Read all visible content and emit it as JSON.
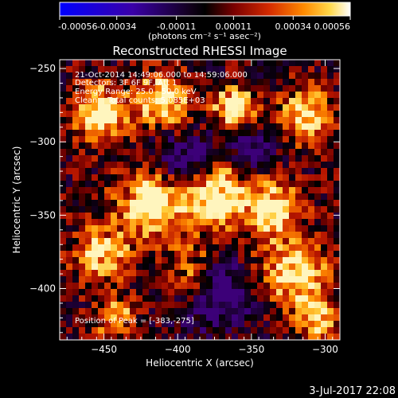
{
  "colorbar": {
    "ticks": [
      "-0.00056",
      "-0.00034",
      "-0.00011",
      "0.00011",
      "0.00034",
      "0.00056"
    ],
    "unit_label": "(photons cm⁻² s⁻¹ asec⁻²)",
    "range": [
      -0.00056,
      0.00056
    ],
    "colors": [
      "#0000ff",
      "#3a00a8",
      "#1a0022",
      "#000000",
      "#7a0000",
      "#d42a00",
      "#ff8a00",
      "#ffd84a",
      "#ffffff"
    ]
  },
  "chart_data": {
    "type": "heatmap",
    "title": "Reconstructed RHESSI Image",
    "xlabel": "Heliocentric X (arcsec)",
    "ylabel": "Heliocentric Y (arcsec)",
    "xlim": [
      -480,
      -290
    ],
    "ylim": [
      -435,
      -244
    ],
    "x_ticks": [
      -450,
      -400,
      -350,
      -300
    ],
    "x_tick_labels": [
      "−450",
      "−400",
      "−350",
      "−300"
    ],
    "y_ticks": [
      -250,
      -300,
      -350,
      -400
    ],
    "y_tick_labels": [
      "−250",
      "−300",
      "−350",
      "−400"
    ],
    "annotations": [
      "21-Oct-2014 14:49:06.000 to 14:59:06.000",
      "Detectors: 3F 6F 9F, Att 1",
      "Energy Range: 25.0 - 50.0 keV",
      "Clean    Total counts: 5.085E+03"
    ],
    "peak_label": "Position of Peak = [-383,-275]",
    "peak": [
      -383,
      -275
    ],
    "grid": false
  },
  "footer": {
    "timestamp": "3-Jul-2017 22:08"
  }
}
